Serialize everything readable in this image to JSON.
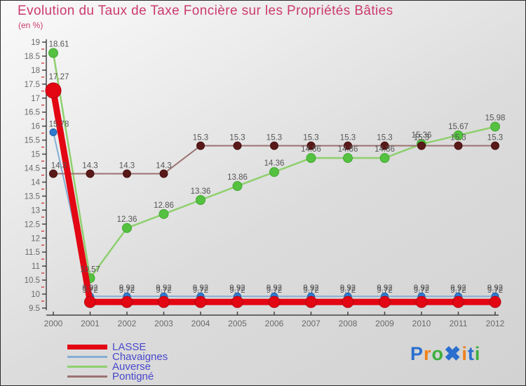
{
  "header": {
    "title": "Evolution du Taux de Taxe Foncière sur les Propriétés Bâties",
    "subtitle": "(en %)"
  },
  "chart_data": {
    "type": "line",
    "title": "Evolution du Taux de Taxe Foncière sur les Propriétés Bâties",
    "subtitle": "(en %)",
    "x": [
      2000,
      2001,
      2002,
      2003,
      2004,
      2005,
      2006,
      2007,
      2008,
      2009,
      2010,
      2011,
      2012
    ],
    "ylim": [
      9.5,
      19
    ],
    "y_major_step": 0.5,
    "y_minor_step": 0.25,
    "y_ticks": [
      "19",
      "18.5",
      "18",
      "17.5",
      "17",
      "16.5",
      "16",
      "15.5",
      "15",
      "14.5",
      "14",
      "13.5",
      "13",
      "12.5",
      "12",
      "11.5",
      "11",
      "10.5",
      "10",
      "9.5"
    ],
    "grid": false,
    "legend_position": "bottom-left",
    "label_color": "#555555",
    "axis_color": "#444444",
    "tick_label_color": "#6a6a6a",
    "minor_tick_color": "#cc2222",
    "series": [
      {
        "name": "LASSE",
        "values": [
          17.27,
          9.72,
          9.72,
          9.72,
          9.72,
          9.72,
          9.72,
          9.72,
          9.72,
          9.72,
          9.72,
          9.72,
          9.72
        ],
        "line_color": "#e30613",
        "dot_color": "#e30613",
        "dot_stroke": "#b50510",
        "line_width": 9,
        "dot_radius": 8,
        "first_dot_radius": 11,
        "label_dy": -13,
        "first_label_dy": -16
      },
      {
        "name": "Chavaignes",
        "values": [
          15.78,
          9.92,
          9.92,
          9.92,
          9.92,
          9.92,
          9.92,
          9.92,
          9.92,
          9.92,
          9.92,
          9.92,
          9.92
        ],
        "line_color": "#85aed4",
        "dot_color": "#2e7ad1",
        "dot_stroke": "#2360a8",
        "line_width": 2,
        "dot_radius": 5,
        "label_dy": -8
      },
      {
        "name": "Auverse",
        "values": [
          18.61,
          10.57,
          12.36,
          12.86,
          13.36,
          13.86,
          14.36,
          14.86,
          14.86,
          14.86,
          15.36,
          15.67,
          15.98
        ],
        "line_color": "#8ed06e",
        "dot_color": "#54c140",
        "dot_stroke": "#46a834",
        "line_width": 2.5,
        "dot_radius": 6.5,
        "label_dy": -9
      },
      {
        "name": "Pontigné",
        "values": [
          14.3,
          14.3,
          14.3,
          14.3,
          15.3,
          15.3,
          15.3,
          15.3,
          15.3,
          15.3,
          15.3,
          15.3,
          15.3
        ],
        "line_color": "#9b7272",
        "dot_color": "#5a1919",
        "dot_stroke": "#461010",
        "line_width": 2,
        "dot_radius": 5.5,
        "label_dy": -8
      }
    ],
    "draw_order": [
      1,
      2,
      3,
      0
    ]
  },
  "legend": {
    "text_color": "#4848cc",
    "items": [
      {
        "label": "LASSE",
        "color": "#e30613",
        "thickness": 7
      },
      {
        "label": "Chavaignes",
        "color": "#85aed4",
        "thickness": 3
      },
      {
        "label": "Auverse",
        "color": "#8ed06e",
        "thickness": 3
      },
      {
        "label": "Pontigné",
        "color": "#9b7272",
        "thickness": 3
      }
    ]
  },
  "logo": {
    "name": "Proxiti",
    "letters": [
      {
        "ch": "P",
        "color": "#2b6fce"
      },
      {
        "ch": "r",
        "color": "#f08019"
      },
      {
        "ch": "o",
        "color": "#3daf3d"
      },
      {
        "ch": "✖",
        "color": "#2b6fce"
      },
      {
        "ch": "i",
        "color": "#f08019"
      },
      {
        "ch": "t",
        "color": "#2b6fce"
      },
      {
        "ch": "i",
        "color": "#3daf3d"
      }
    ]
  }
}
